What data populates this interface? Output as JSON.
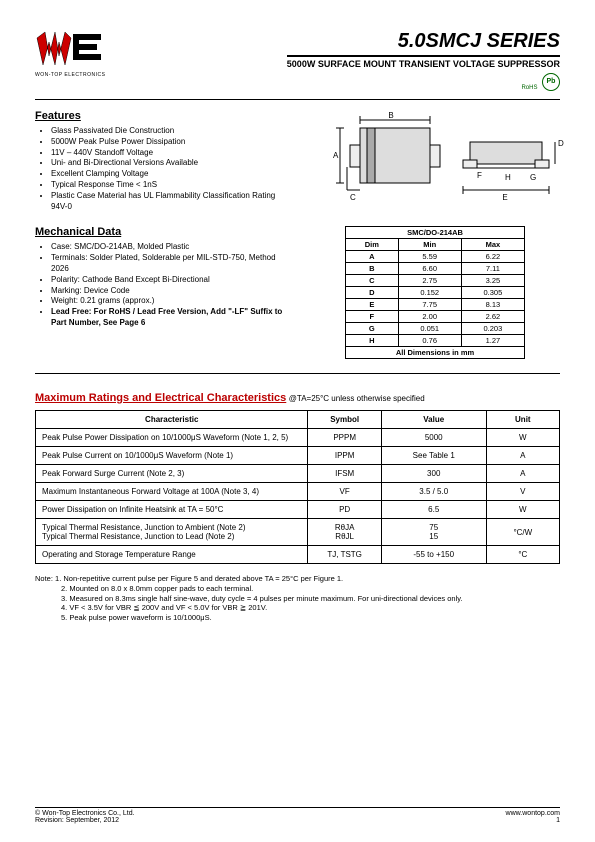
{
  "header": {
    "logo_company": "WON-TOP ELECTRONICS",
    "title": "5.0SMCJ  SERIES",
    "subtitle": "5000W  SURFACE  MOUNT  TRANSIENT  VOLTAGE  SUPPRESSOR",
    "badge_rohs": "RoHS",
    "badge_pb": "Pb"
  },
  "features": {
    "heading": "Features",
    "items": [
      "Glass Passivated Die Construction",
      "5000W Peak Pulse Power Dissipation",
      "11V – 440V Standoff Voltage",
      "Uni- and Bi-Directional Versions Available",
      "Excellent Clamping Voltage",
      "Typical Response Time < 1nS",
      "Plastic Case Material has UL Flammability Classification Rating 94V-0"
    ]
  },
  "mechanical": {
    "heading": "Mechanical Data",
    "items": [
      "Case: SMC/DO-214AB, Molded Plastic",
      "Terminals: Solder Plated, Solderable per MIL-STD-750, Method 2026",
      "Polarity: Cathode Band Except Bi-Directional",
      "Marking: Device Code",
      "Weight: 0.21 grams (approx.)",
      "Lead Free: For RoHS / Lead Free Version, Add \"-LF\" Suffix to Part Number, See Page 6"
    ]
  },
  "dim_table": {
    "caption": "SMC/DO-214AB",
    "headers": [
      "Dim",
      "Min",
      "Max"
    ],
    "rows": [
      [
        "A",
        "5.59",
        "6.22"
      ],
      [
        "B",
        "6.60",
        "7.11"
      ],
      [
        "C",
        "2.75",
        "3.25"
      ],
      [
        "D",
        "0.152",
        "0.305"
      ],
      [
        "E",
        "7.75",
        "8.13"
      ],
      [
        "F",
        "2.00",
        "2.62"
      ],
      [
        "G",
        "0.051",
        "0.203"
      ],
      [
        "H",
        "0.76",
        "1.27"
      ]
    ],
    "footer": "All Dimensions in mm"
  },
  "ratings": {
    "heading": "Maximum Ratings and Electrical Characteristics",
    "condition": "@TA=25°C unless otherwise specified",
    "headers": [
      "Characteristic",
      "Symbol",
      "Value",
      "Unit"
    ],
    "rows": [
      {
        "c": "Peak Pulse Power Dissipation on 10/1000μS Waveform (Note 1, 2, 5)",
        "s": "PPPM",
        "v": "5000",
        "u": "W"
      },
      {
        "c": "Peak Pulse Current on 10/1000μS Waveform (Note 1)",
        "s": "IPPM",
        "v": "See Table 1",
        "u": "A"
      },
      {
        "c": "Peak Forward Surge Current (Note 2, 3)",
        "s": "IFSM",
        "v": "300",
        "u": "A"
      },
      {
        "c": "Maximum Instantaneous Forward Voltage at 100A (Note 3, 4)",
        "s": "VF",
        "v": "3.5 / 5.0",
        "u": "V"
      },
      {
        "c": "Power Dissipation on Infinite Heatsink at TA = 50°C",
        "s": "PD",
        "v": "6.5",
        "u": "W"
      },
      {
        "c": "Typical Thermal Resistance, Junction to Ambient (Note 2)\nTypical Thermal Resistance, Junction to Lead (Note 2)",
        "s": "RθJA\nRθJL",
        "v": "75\n15",
        "u": "°C/W"
      },
      {
        "c": "Operating and Storage Temperature Range",
        "s": "TJ, TSTG",
        "v": "-55 to +150",
        "u": "°C"
      }
    ]
  },
  "notes": {
    "label": "Note:",
    "items": [
      "1. Non-repetitive current pulse per Figure 5 and derated above TA = 25°C per Figure 1.",
      "2. Mounted on 8.0 x 8.0mm copper pads to each terminal.",
      "3. Measured on 8.3ms single half sine-wave, duty cycle = 4 pulses per minute maximum. For uni-directional devices only.",
      "4. VF < 3.5V for VBR ≦ 200V and VF < 5.0V for VBR ≧ 201V.",
      "5. Peak pulse power waveform is 10/1000μS."
    ]
  },
  "footer": {
    "left1": "© Won-Top Electronics Co., Ltd.",
    "left2": "Revision: September, 2012",
    "right1": "www.wontop.com",
    "right2": "1"
  },
  "colors": {
    "accent_red": "#b00000",
    "accent_green": "#006600"
  }
}
